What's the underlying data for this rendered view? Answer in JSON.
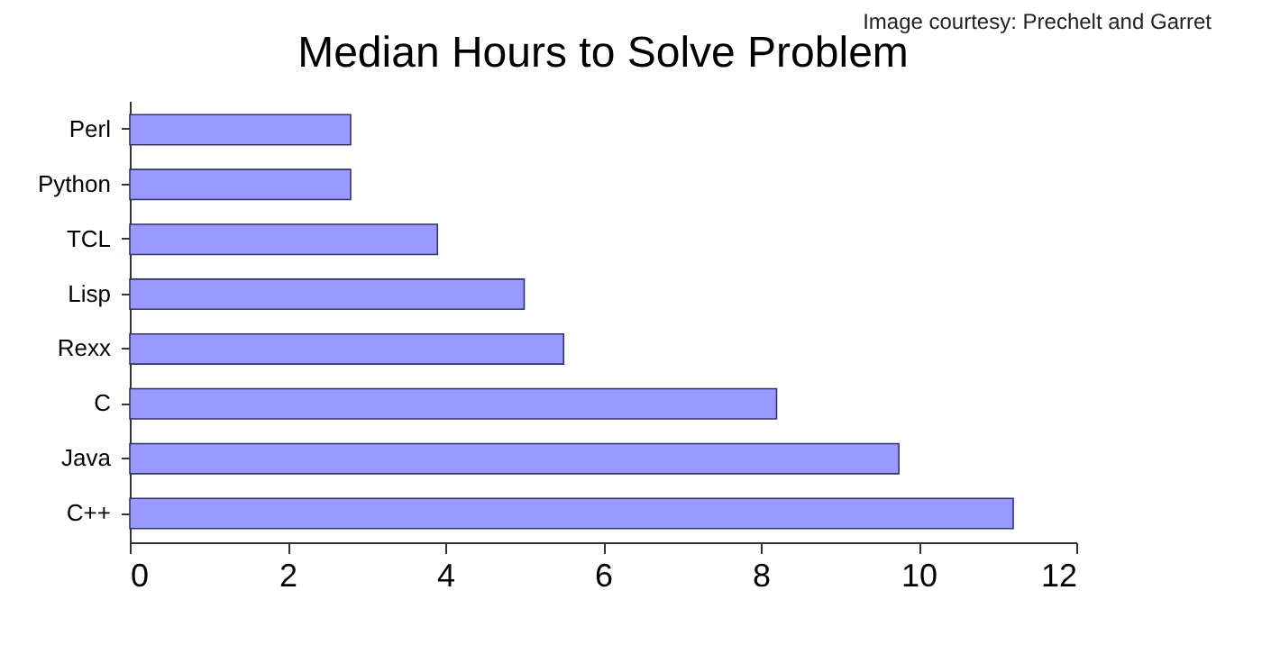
{
  "chart_data": {
    "type": "bar",
    "orientation": "horizontal",
    "title": "Median Hours to Solve Problem",
    "categories": [
      "Perl",
      "Python",
      "TCL",
      "Lisp",
      "Rexx",
      "C",
      "Java",
      "C++"
    ],
    "values": [
      2.8,
      2.8,
      3.9,
      5.0,
      5.5,
      8.2,
      9.75,
      11.2
    ],
    "color": "#9999ff",
    "xlim": [
      0,
      12
    ],
    "xticks": [
      0,
      2,
      4,
      6,
      8,
      10,
      12
    ],
    "grid": false,
    "annotations": [
      "Image courtesy:  Prechelt and Garret"
    ]
  }
}
